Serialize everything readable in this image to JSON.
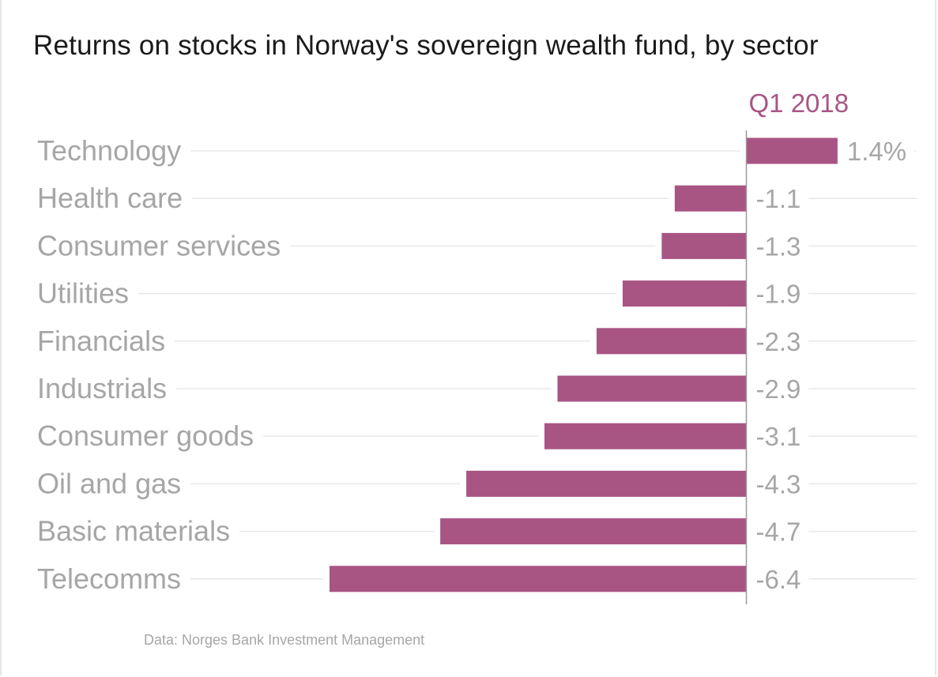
{
  "title": "Returns on stocks in Norway's sovereign wealth fund, by sector",
  "source": "Data:  Norges Bank Investment Management",
  "colors": {
    "bar": "#a85584",
    "series_label": "#a85584",
    "text_muted": "#a6a6a6",
    "gridline": "#e8e8e8",
    "zero_line": "#999999"
  },
  "chart_data": {
    "type": "bar",
    "orientation": "horizontal",
    "categories": [
      "Technology",
      "Health care",
      "Consumer services",
      "Utilities",
      "Financials",
      "Industrials",
      "Consumer goods",
      "Oil and gas",
      "Basic materials",
      "Telecomms"
    ],
    "series": [
      {
        "name": "Q1 2018",
        "values": [
          1.4,
          -1.1,
          -1.3,
          -1.9,
          -2.3,
          -2.9,
          -3.1,
          -4.3,
          -4.7,
          -6.4
        ]
      }
    ],
    "value_labels": [
      "1.4%",
      "-1.1",
      "-1.3",
      "-1.9",
      "-2.3",
      "-2.9",
      "-3.1",
      "-4.3",
      "-4.7",
      "-6.4"
    ],
    "unit": "%",
    "xlim": [
      -6.4,
      1.4
    ],
    "grid": true,
    "legend": "top"
  }
}
